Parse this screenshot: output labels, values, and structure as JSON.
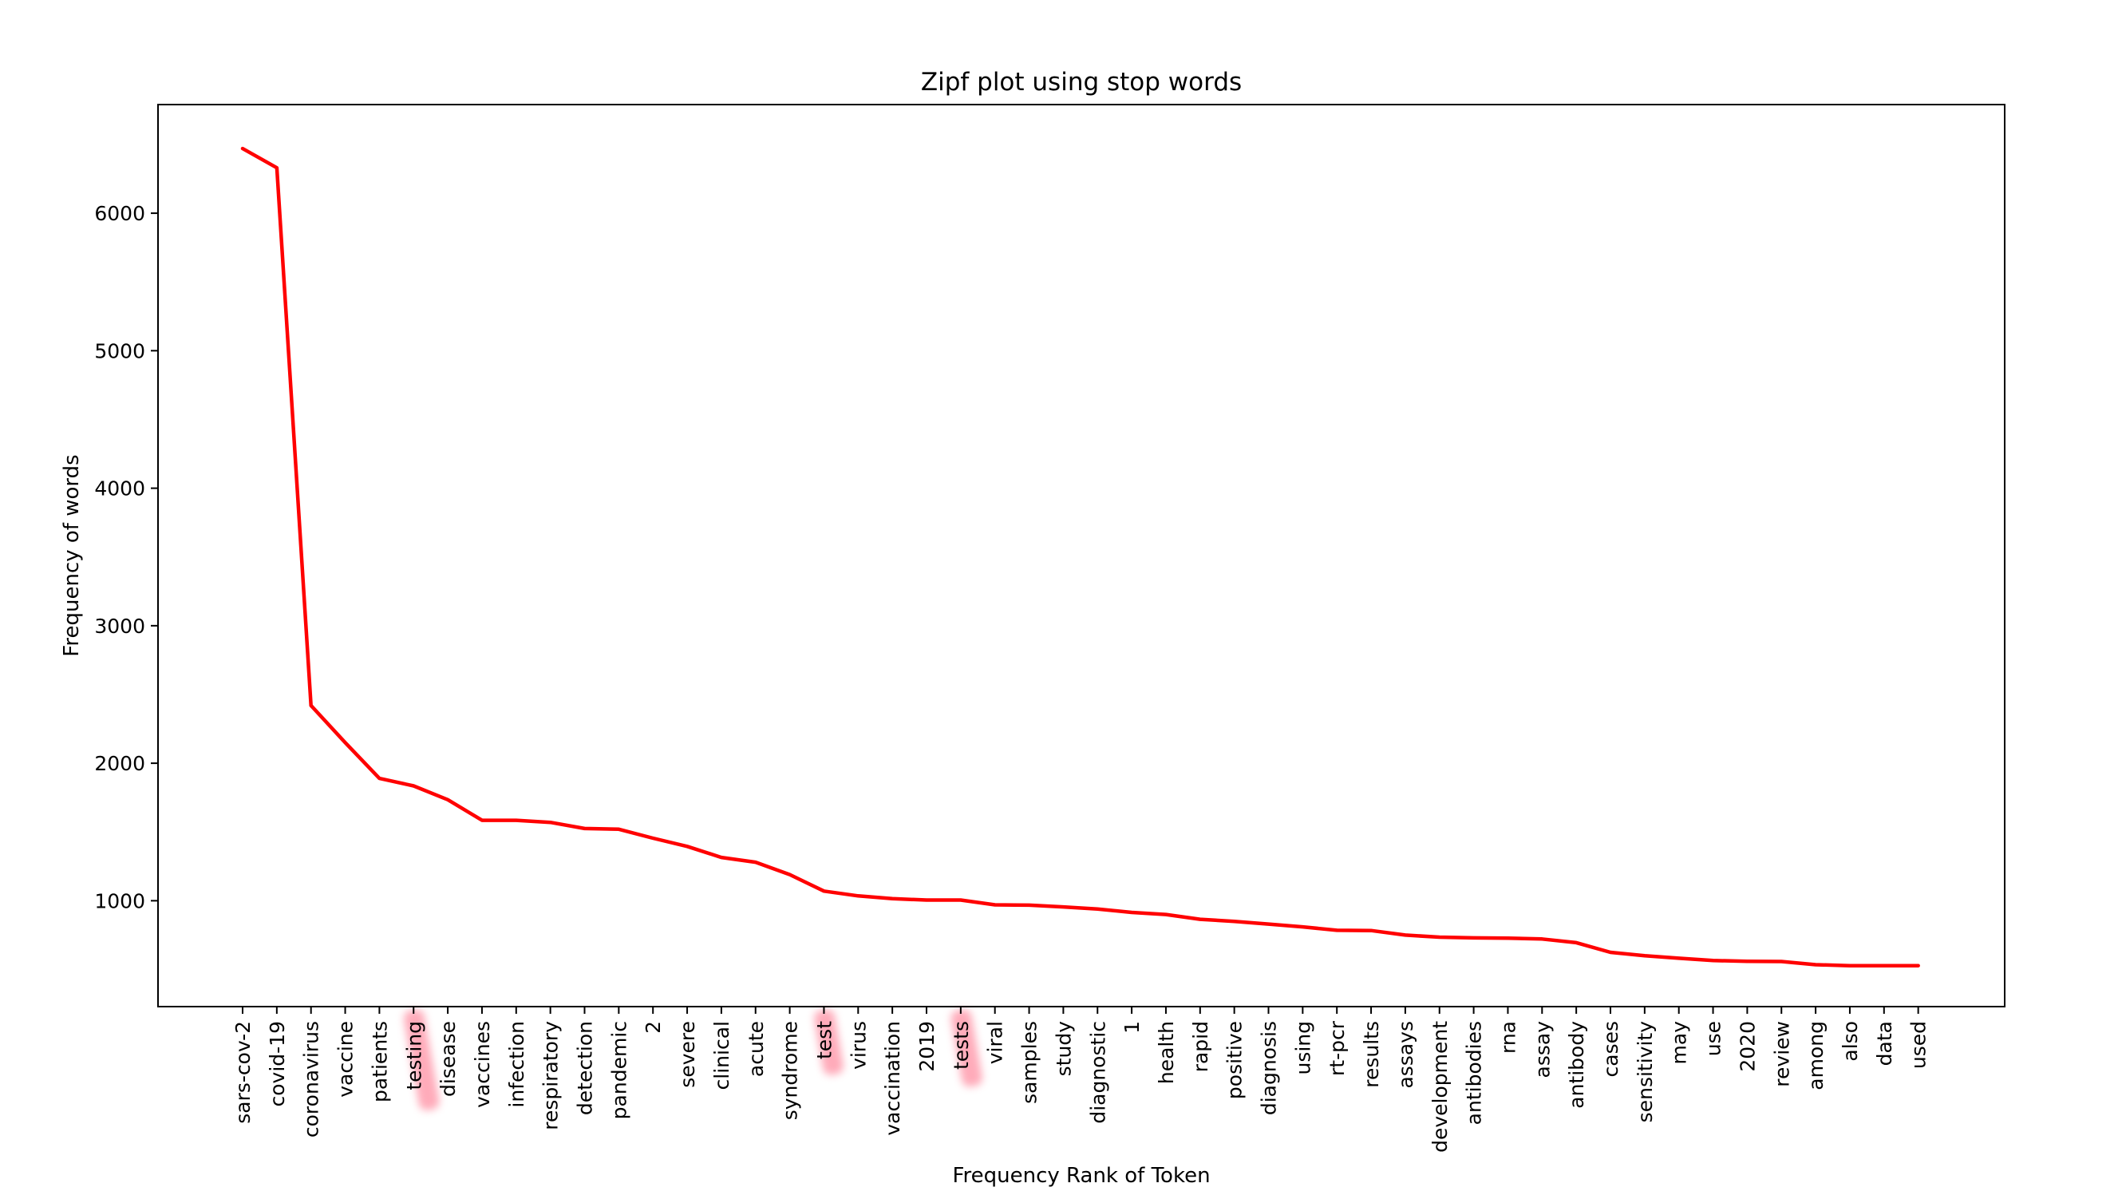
{
  "chart_data": {
    "type": "line",
    "title": "Zipf plot using stop words",
    "xlabel": "Frequency Rank of Token",
    "ylabel": "Frequency of words",
    "line_color": "#ff0000",
    "highlight_color": "#ff8fa3",
    "highlighted_categories": [
      "testing",
      "test",
      "tests"
    ],
    "grid": false,
    "legend": "none",
    "y_ticks": [
      1000,
      2000,
      3000,
      4000,
      5000,
      6000
    ],
    "ylim": [
      230,
      6790
    ],
    "categories": [
      "sars-cov-2",
      "covid-19",
      "coronavirus",
      "vaccine",
      "patients",
      "testing",
      "disease",
      "vaccines",
      "infection",
      "respiratory",
      "detection",
      "pandemic",
      "2",
      "severe",
      "clinical",
      "acute",
      "syndrome",
      "test",
      "virus",
      "vaccination",
      "2019",
      "tests",
      "viral",
      "samples",
      "study",
      "diagnostic",
      "1",
      "health",
      "rapid",
      "positive",
      "diagnosis",
      "using",
      "rt-pcr",
      "results",
      "assays",
      "development",
      "antibodies",
      "rna",
      "assay",
      "antibody",
      "cases",
      "sensitivity",
      "may",
      "use",
      "2020",
      "review",
      "among",
      "also",
      "data",
      "used"
    ],
    "values": [
      6470,
      6330,
      2420,
      2150,
      1890,
      1835,
      1735,
      1585,
      1585,
      1570,
      1525,
      1520,
      1455,
      1395,
      1315,
      1280,
      1190,
      1070,
      1035,
      1015,
      1005,
      1005,
      970,
      968,
      955,
      940,
      915,
      900,
      865,
      850,
      830,
      810,
      785,
      783,
      750,
      735,
      730,
      728,
      722,
      695,
      625,
      600,
      582,
      565,
      560,
      558,
      535,
      528,
      528,
      528
    ]
  }
}
